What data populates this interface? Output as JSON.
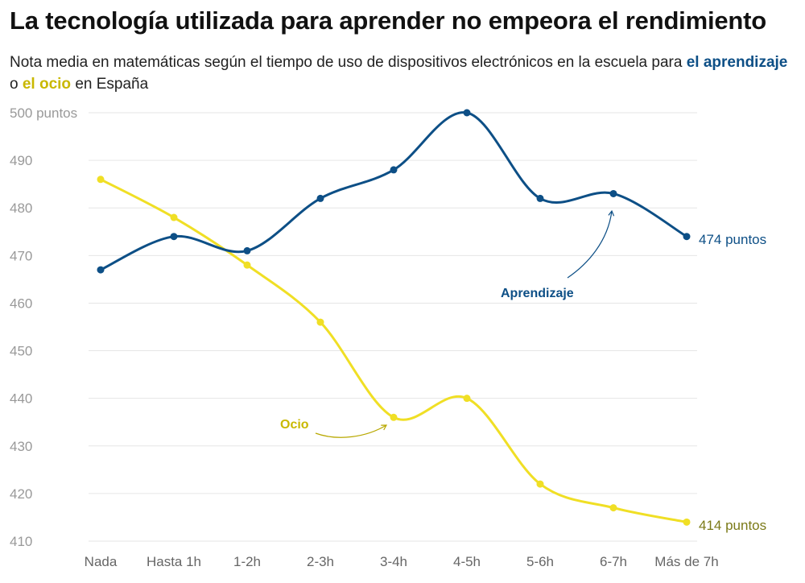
{
  "title": "La tecnología utilizada para aprender no empeora el rendimiento",
  "subtitle": {
    "prefix": "Nota media en matemáticas según el tiempo de uso de dispositivos electrónicos en la escuela para",
    "series_a": "el aprendizaje",
    "middle": "o",
    "series_b": "el ocio",
    "suffix": "en España"
  },
  "colors": {
    "aprendizaje": "#0d4f86",
    "ocio": "#f0df25",
    "ocio_text": "#c9b800",
    "ocio_end_text": "#7b7a18",
    "grid": "#e6e6e6"
  },
  "annotations": {
    "aprendizaje_end": "474 puntos",
    "ocio_end": "414 puntos",
    "aprendizaje_label": "Aprendizaje",
    "ocio_label": "Ocio"
  },
  "chart_data": {
    "type": "line",
    "title": "La tecnología utilizada para aprender no empeora el rendimiento",
    "xlabel": "",
    "ylabel": "",
    "ylim": [
      410,
      500
    ],
    "yticks": [
      {
        "value": 500,
        "label": "500 puntos"
      },
      {
        "value": 490,
        "label": "490"
      },
      {
        "value": 480,
        "label": "480"
      },
      {
        "value": 470,
        "label": "470"
      },
      {
        "value": 460,
        "label": "460"
      },
      {
        "value": 450,
        "label": "450"
      },
      {
        "value": 440,
        "label": "440"
      },
      {
        "value": 430,
        "label": "430"
      },
      {
        "value": 420,
        "label": "420"
      },
      {
        "value": 410,
        "label": "410"
      }
    ],
    "grid": true,
    "categories": [
      "Nada",
      "Hasta 1h",
      "1-2h",
      "2-3h",
      "3-4h",
      "4-5h",
      "5-6h",
      "6-7h",
      "Más de 7h"
    ],
    "series": [
      {
        "name": "Aprendizaje",
        "values": [
          467,
          474,
          471,
          482,
          488,
          500,
          482,
          483,
          474
        ]
      },
      {
        "name": "Ocio",
        "values": [
          486,
          478,
          468,
          456,
          436,
          440,
          422,
          417,
          414
        ]
      }
    ]
  }
}
